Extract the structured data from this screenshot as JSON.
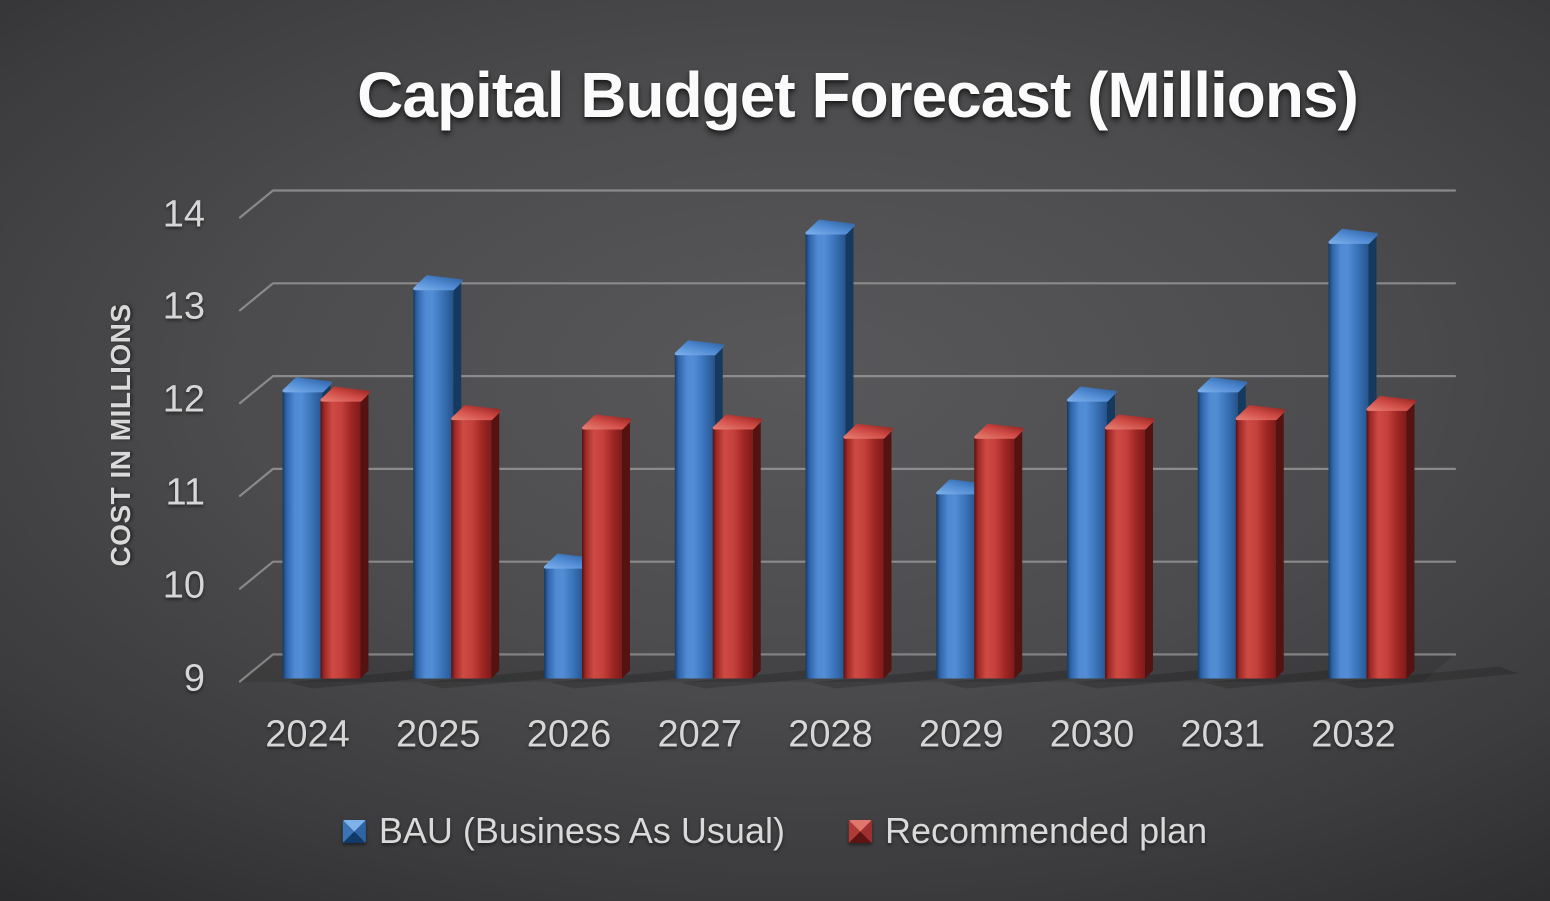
{
  "chart_data": {
    "type": "bar",
    "style": "3d-column",
    "title": "Capital Budget Forecast (Millions)",
    "xlabel": "",
    "ylabel": "COST IN MILLIONS",
    "categories": [
      "2024",
      "2025",
      "2026",
      "2027",
      "2028",
      "2029",
      "2030",
      "2031",
      "2032"
    ],
    "series": [
      {
        "name": "BAU (Business As Usual)",
        "color": "#3b76be",
        "values": [
          12.1,
          13.2,
          10.2,
          12.5,
          13.8,
          11.0,
          12.0,
          12.1,
          13.7
        ]
      },
      {
        "name": "Recommended plan",
        "color": "#c23936",
        "values": [
          12.0,
          11.8,
          11.7,
          11.7,
          11.6,
          11.6,
          11.7,
          11.8,
          11.9
        ]
      }
    ],
    "ylim": [
      9,
      14
    ],
    "ytick_step": 1,
    "yticks": [
      "9",
      "10",
      "11",
      "12",
      "13",
      "14"
    ],
    "grid": true,
    "legend_position": "bottom",
    "colors": {
      "background": "#4c4c4e",
      "gridline": "#9a9a9a",
      "tick_text": "#d6d6d6",
      "title_text": "#fbfbfb"
    }
  }
}
